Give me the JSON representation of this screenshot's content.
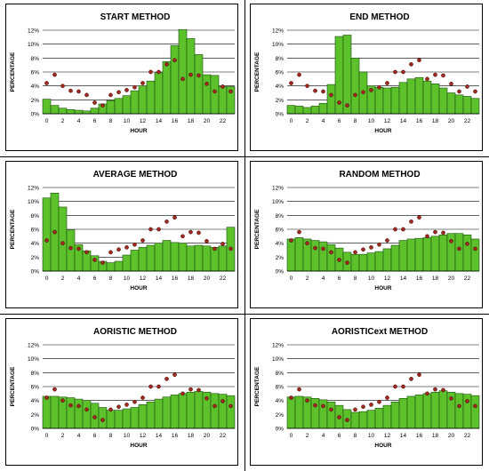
{
  "chart_data": [
    {
      "type": "bar",
      "title": "START METHOD",
      "xlabel": "HOUR",
      "ylabel": "PERCENTAGE",
      "ylim": [
        0,
        12
      ],
      "y_ticks": [
        "0%",
        "2%",
        "4%",
        "6%",
        "8%",
        "10%",
        "12%"
      ],
      "x_ticks": [
        "0",
        "2",
        "4",
        "6",
        "8",
        "10",
        "12",
        "14",
        "16",
        "18",
        "20",
        "22"
      ],
      "categories": [
        0,
        1,
        2,
        3,
        4,
        5,
        6,
        7,
        8,
        9,
        10,
        11,
        12,
        13,
        14,
        15,
        16,
        17,
        18,
        19,
        20,
        21,
        22,
        23
      ],
      "series": [
        {
          "kind": "bar",
          "values": [
            2.1,
            1.2,
            0.8,
            0.6,
            0.5,
            0.4,
            0.8,
            1.4,
            1.9,
            2.2,
            2.6,
            3.3,
            4.0,
            4.7,
            5.9,
            7.5,
            9.8,
            12.1,
            10.8,
            8.5,
            5.6,
            5.5,
            3.9,
            3.9
          ]
        },
        {
          "kind": "dots",
          "values": [
            4.4,
            5.6,
            4.0,
            3.3,
            3.2,
            2.7,
            1.6,
            1.2,
            2.7,
            3.1,
            3.4,
            3.8,
            4.4,
            6.0,
            6.0,
            7.1,
            7.7,
            5.0,
            5.6,
            5.5,
            4.3,
            3.2,
            3.9,
            3.2
          ]
        }
      ],
      "grid": true
    },
    {
      "type": "bar",
      "title": "END METHOD",
      "xlabel": "HOUR",
      "ylabel": "PERCENTAGE",
      "ylim": [
        0,
        12
      ],
      "y_ticks": [
        "0%",
        "2%",
        "4%",
        "6%",
        "8%",
        "10%",
        "12%"
      ],
      "x_ticks": [
        "0",
        "2",
        "4",
        "6",
        "8",
        "10",
        "12",
        "14",
        "16",
        "18",
        "20",
        "22"
      ],
      "categories": [
        0,
        1,
        2,
        3,
        4,
        5,
        6,
        7,
        8,
        9,
        10,
        11,
        12,
        13,
        14,
        15,
        16,
        17,
        18,
        19,
        20,
        21,
        22,
        23
      ],
      "series": [
        {
          "kind": "bar",
          "values": [
            1.2,
            1.1,
            0.9,
            1.1,
            1.5,
            4.2,
            11.1,
            11.3,
            8.0,
            6.0,
            4.0,
            3.8,
            3.7,
            3.8,
            4.5,
            5.0,
            5.2,
            4.7,
            4.3,
            3.7,
            3.0,
            2.7,
            2.5,
            2.2
          ]
        },
        {
          "kind": "dots",
          "values": [
            4.4,
            5.6,
            4.0,
            3.3,
            3.2,
            2.7,
            1.6,
            1.2,
            2.7,
            3.1,
            3.4,
            3.8,
            4.4,
            6.0,
            6.0,
            7.1,
            7.7,
            5.0,
            5.6,
            5.5,
            4.3,
            3.2,
            3.9,
            3.2
          ]
        }
      ],
      "grid": true
    },
    {
      "type": "bar",
      "title": "AVERAGE METHOD",
      "xlabel": "HOUR",
      "ylabel": "PERCENTAGE",
      "ylim": [
        0,
        12
      ],
      "y_ticks": [
        "0%",
        "2%",
        "4%",
        "6%",
        "8%",
        "10%",
        "12%"
      ],
      "x_ticks": [
        "0",
        "2",
        "4",
        "6",
        "8",
        "10",
        "12",
        "14",
        "16",
        "18",
        "20",
        "22"
      ],
      "categories": [
        0,
        1,
        2,
        3,
        4,
        5,
        6,
        7,
        8,
        9,
        10,
        11,
        12,
        13,
        14,
        15,
        16,
        17,
        18,
        19,
        20,
        21,
        22,
        23
      ],
      "series": [
        {
          "kind": "bar",
          "values": [
            10.5,
            11.2,
            9.2,
            5.9,
            3.8,
            2.9,
            2.2,
            1.4,
            1.2,
            1.4,
            2.3,
            3.0,
            3.4,
            3.7,
            4.0,
            4.4,
            4.1,
            4.0,
            3.6,
            3.7,
            3.6,
            3.4,
            3.6,
            6.3
          ]
        },
        {
          "kind": "dots",
          "values": [
            4.4,
            5.6,
            4.0,
            3.3,
            3.2,
            2.7,
            1.6,
            1.2,
            2.7,
            3.1,
            3.4,
            3.8,
            4.4,
            6.0,
            6.0,
            7.1,
            7.7,
            5.0,
            5.6,
            5.5,
            4.3,
            3.2,
            3.9,
            3.2
          ]
        }
      ],
      "grid": true
    },
    {
      "type": "bar",
      "title": "RANDOM METHOD",
      "xlabel": "HOUR",
      "ylabel": "PERCENTAGE",
      "ylim": [
        0,
        12
      ],
      "y_ticks": [
        "0%",
        "2%",
        "4%",
        "6%",
        "8%",
        "10%",
        "12%"
      ],
      "x_ticks": [
        "0",
        "2",
        "4",
        "6",
        "8",
        "10",
        "12",
        "14",
        "16",
        "18",
        "20",
        "22"
      ],
      "categories": [
        0,
        1,
        2,
        3,
        4,
        5,
        6,
        7,
        8,
        9,
        10,
        11,
        12,
        13,
        14,
        15,
        16,
        17,
        18,
        19,
        20,
        21,
        22,
        23
      ],
      "series": [
        {
          "kind": "bar",
          "values": [
            4.6,
            4.8,
            4.6,
            4.4,
            4.2,
            3.8,
            3.3,
            2.7,
            2.4,
            2.4,
            2.6,
            2.8,
            3.2,
            3.7,
            4.4,
            4.6,
            4.7,
            4.8,
            5.0,
            5.2,
            5.4,
            5.4,
            5.2,
            4.6
          ]
        },
        {
          "kind": "dots",
          "values": [
            4.4,
            5.6,
            4.0,
            3.3,
            3.2,
            2.7,
            1.6,
            1.2,
            2.7,
            3.1,
            3.4,
            3.8,
            4.4,
            6.0,
            6.0,
            7.1,
            7.7,
            5.0,
            5.6,
            5.5,
            4.3,
            3.2,
            3.9,
            3.2
          ]
        }
      ],
      "grid": true
    },
    {
      "type": "bar",
      "title": "AORISTIC METHOD",
      "xlabel": "HOUR",
      "ylabel": "PERCENTAGE",
      "ylim": [
        0,
        12
      ],
      "y_ticks": [
        "0%",
        "2%",
        "4%",
        "6%",
        "8%",
        "10%",
        "12%"
      ],
      "x_ticks": [
        "0",
        "2",
        "4",
        "6",
        "8",
        "10",
        "12",
        "14",
        "16",
        "18",
        "20",
        "22"
      ],
      "categories": [
        0,
        1,
        2,
        3,
        4,
        5,
        6,
        7,
        8,
        9,
        10,
        11,
        12,
        13,
        14,
        15,
        16,
        17,
        18,
        19,
        20,
        21,
        22,
        23
      ],
      "series": [
        {
          "kind": "bar",
          "values": [
            4.6,
            4.6,
            4.5,
            4.4,
            4.2,
            4.0,
            3.6,
            3.0,
            2.6,
            2.6,
            2.8,
            3.0,
            3.4,
            3.8,
            4.2,
            4.5,
            4.8,
            5.0,
            5.2,
            5.3,
            5.2,
            5.0,
            4.9,
            4.7
          ]
        },
        {
          "kind": "dots",
          "values": [
            4.4,
            5.6,
            4.0,
            3.3,
            3.2,
            2.7,
            1.6,
            1.2,
            2.7,
            3.1,
            3.4,
            3.8,
            4.4,
            6.0,
            6.0,
            7.1,
            7.7,
            5.0,
            5.6,
            5.5,
            4.3,
            3.2,
            3.9,
            3.2
          ]
        }
      ],
      "grid": true
    },
    {
      "type": "bar",
      "title": "AORISTICext METHOD",
      "xlabel": "HOUR",
      "ylabel": "PERCENTAGE",
      "ylim": [
        0,
        12
      ],
      "y_ticks": [
        "0%",
        "2%",
        "4%",
        "6%",
        "8%",
        "10%",
        "12%"
      ],
      "x_ticks": [
        "0",
        "2",
        "4",
        "6",
        "8",
        "10",
        "12",
        "14",
        "16",
        "18",
        "20",
        "22"
      ],
      "categories": [
        0,
        1,
        2,
        3,
        4,
        5,
        6,
        7,
        8,
        9,
        10,
        11,
        12,
        13,
        14,
        15,
        16,
        17,
        18,
        19,
        20,
        21,
        22,
        23
      ],
      "series": [
        {
          "kind": "bar",
          "values": [
            4.5,
            4.6,
            4.5,
            4.3,
            4.1,
            3.8,
            3.3,
            2.7,
            2.3,
            2.4,
            2.6,
            2.9,
            3.3,
            3.8,
            4.3,
            4.6,
            4.8,
            5.0,
            5.2,
            5.4,
            5.2,
            5.0,
            4.9,
            4.7
          ]
        },
        {
          "kind": "dots",
          "values": [
            4.4,
            5.6,
            4.0,
            3.3,
            3.2,
            2.7,
            1.6,
            1.2,
            2.7,
            3.1,
            3.4,
            3.8,
            4.4,
            6.0,
            6.0,
            7.1,
            7.7,
            5.0,
            5.6,
            5.5,
            4.3,
            3.2,
            3.9,
            3.2
          ]
        }
      ],
      "grid": true
    }
  ],
  "colors": {
    "bar_fill": "#5cc12b",
    "bar_stroke": "#1c4f0e",
    "dot_fill": "#a3281f",
    "dot_stroke": "#3a0e0a",
    "grid": "#000000",
    "text": "#000000"
  }
}
